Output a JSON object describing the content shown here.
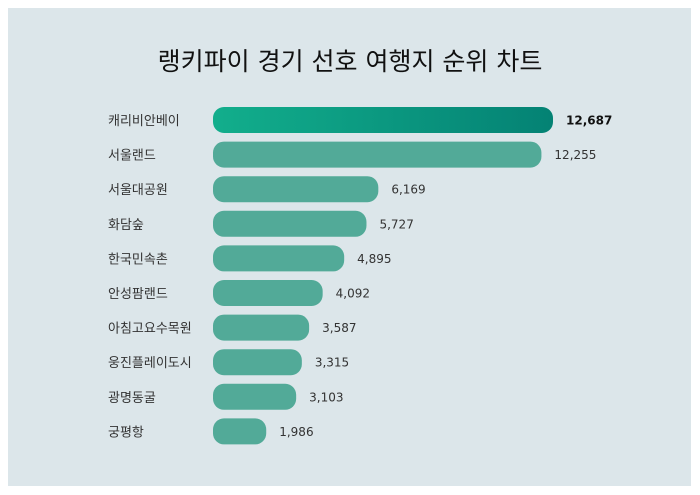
{
  "chart_data": {
    "type": "bar",
    "orientation": "horizontal",
    "title": "랭키파이 경기 선호 여행지 순위 차트",
    "categories": [
      "캐리비안베이",
      "서울랜드",
      "서울대공원",
      "화담숲",
      "한국민속촌",
      "안성팜랜드",
      "아침고요수목원",
      "웅진플레이도시",
      "광명동굴",
      "궁평항"
    ],
    "values": [
      12687,
      12255,
      6169,
      5727,
      4895,
      4092,
      3587,
      3315,
      3103,
      1986
    ],
    "value_labels": [
      "12,687",
      "12,255",
      "6,169",
      "5,727",
      "4,895",
      "4,092",
      "3,587",
      "3,315",
      "3,103",
      "1,986"
    ],
    "xlim": [
      0,
      12687
    ],
    "grid": false,
    "colors": {
      "bar": "#52aa98",
      "highlight_start": "#12ae8c",
      "highlight_end": "#048274",
      "background": "#dce6ea"
    }
  }
}
